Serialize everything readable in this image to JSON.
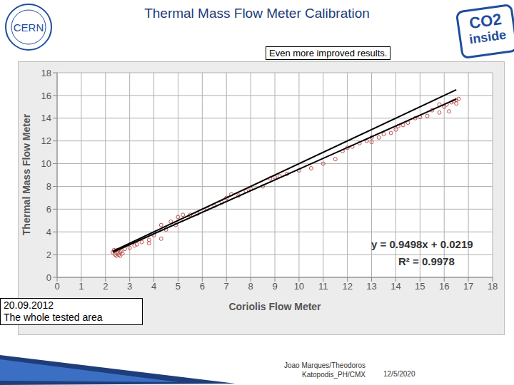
{
  "header": {
    "title": "Thermal Mass Flow Meter Calibration",
    "logo_left": "CERN",
    "logo_right": [
      "CO2",
      "inside"
    ]
  },
  "footer": {
    "author": [
      "Joao Marques/Theodoros",
      "Katopodis_PH/CMX"
    ],
    "date": "12/5/2020"
  },
  "chart_data": {
    "type": "scatter",
    "note": "Even more improved results.",
    "equation": "y = 0.9498x + 0.0219",
    "r_squared_label": "R² = 0.9978",
    "date_box": [
      "20.09.2012",
      "The whole tested area"
    ],
    "x_label": "Coriolis Flow Meter",
    "y_label": "Thermal Mass Flow Meter",
    "xlim": [
      0,
      18
    ],
    "xticks": [
      0,
      1,
      2,
      3,
      4,
      5,
      6,
      7,
      8,
      9,
      10,
      11,
      12,
      13,
      14,
      15,
      16,
      17,
      18
    ],
    "ylim": [
      0,
      18
    ],
    "yticks": [
      0,
      2,
      4,
      6,
      8,
      10,
      12,
      14,
      16,
      18
    ],
    "grid": true,
    "series": [
      {
        "type": "scatter",
        "color": "#c0504d",
        "marker": "circle",
        "x": [
          2.3,
          2.35,
          2.4,
          2.4,
          2.45,
          2.5,
          2.5,
          2.55,
          2.6,
          2.6,
          2.65,
          2.7,
          2.8,
          3.0,
          3.2,
          3.3,
          3.5,
          3.8,
          3.8,
          4.0,
          4.3,
          4.3,
          4.5,
          4.7,
          4.9,
          5.0,
          5.2,
          5.5,
          5.8,
          6.2,
          6.5,
          6.8,
          7.0,
          7.2,
          7.5,
          7.8,
          8.0,
          8.5,
          8.8,
          9.0,
          9.2,
          9.5,
          10.0,
          10.5,
          11.0,
          11.5,
          11.8,
          12.0,
          12.2,
          12.5,
          12.8,
          13.0,
          13.0,
          13.3,
          13.5,
          13.8,
          14.0,
          14.1,
          14.3,
          14.5,
          14.8,
          15.0,
          15.3,
          15.5,
          15.8,
          15.8,
          16.0,
          16.1,
          16.2,
          16.3,
          16.4,
          16.5,
          16.6,
          16.5
        ],
        "values": [
          2.2,
          2.4,
          2.0,
          2.3,
          1.9,
          2.1,
          2.4,
          2.0,
          2.2,
          1.9,
          2.3,
          2.1,
          2.5,
          2.6,
          2.8,
          2.9,
          3.1,
          3.0,
          3.3,
          3.7,
          3.4,
          4.6,
          4.2,
          4.9,
          4.6,
          5.3,
          5.5,
          5.5,
          5.6,
          6.0,
          6.3,
          6.6,
          7.0,
          7.3,
          7.2,
          7.6,
          7.8,
          8.0,
          8.7,
          8.8,
          8.9,
          9.1,
          9.4,
          9.6,
          10.0,
          10.4,
          11.1,
          11.4,
          11.5,
          11.8,
          12.0,
          12.3,
          11.9,
          12.3,
          12.6,
          12.7,
          13.0,
          13.3,
          13.4,
          13.6,
          14.0,
          14.1,
          14.2,
          14.7,
          14.5,
          15.2,
          15.0,
          15.2,
          14.6,
          15.4,
          15.5,
          15.6,
          15.7,
          15.3
        ]
      },
      {
        "type": "line",
        "color": "#000000",
        "x": [
          2.3,
          16.5
        ],
        "values": [
          2.3,
          16.5
        ]
      },
      {
        "type": "line",
        "color": "#000000",
        "x": [
          2.3,
          16.5
        ],
        "values": [
          2.21,
          15.69
        ]
      }
    ]
  }
}
